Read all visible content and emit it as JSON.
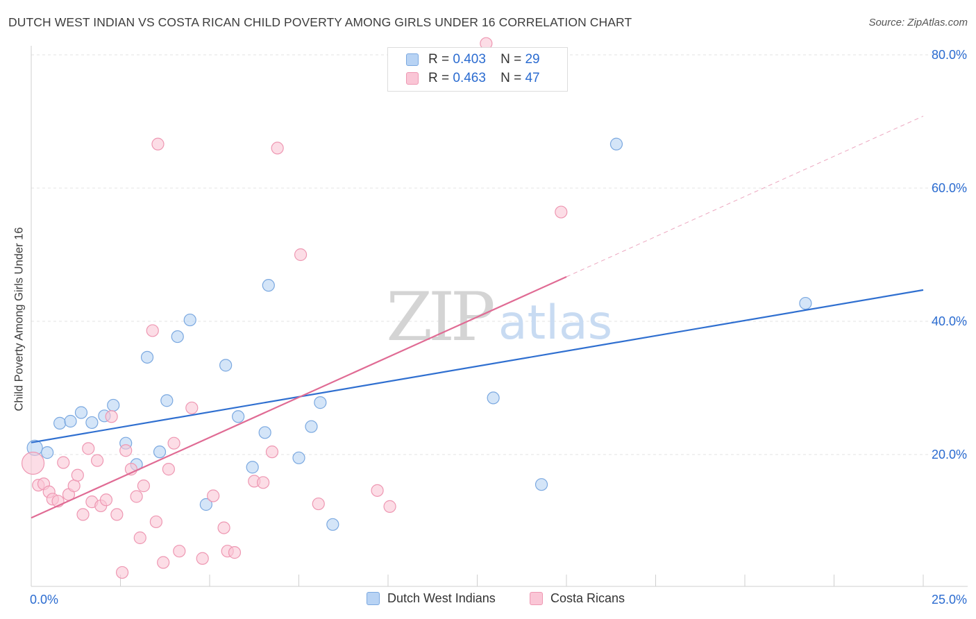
{
  "title": "DUTCH WEST INDIAN VS COSTA RICAN CHILD POVERTY AMONG GIRLS UNDER 16 CORRELATION CHART",
  "source": "Source: ZipAtlas.com",
  "watermark": {
    "zip": "ZIP",
    "atlas": "atlas"
  },
  "legend": {
    "r_label": "R =",
    "n_label": "N =",
    "items": [
      {
        "name": "Dutch West Indians",
        "r": "0.403",
        "n": "29",
        "fill": "#b8d3f4",
        "stroke": "#7aa8e0"
      },
      {
        "name": "Costa Ricans",
        "r": "0.463",
        "n": "47",
        "fill": "#fac6d6",
        "stroke": "#ee97b2"
      }
    ]
  },
  "colors": {
    "blue_line": "#2f6fd0",
    "pink_line": "#e06b94",
    "grid": "#e3e3e3",
    "axis_label": "#2a6bd0"
  },
  "chart_data": {
    "type": "scatter",
    "xlabel": "",
    "ylabel": "Child Poverty Among Girls Under 16",
    "x_unit": "%",
    "xlim": [
      0,
      25
    ],
    "ylim": [
      0,
      82
    ],
    "x_tick_labels": [
      {
        "value": 0,
        "label": "0.0%"
      },
      {
        "value": 25,
        "label": "25.0%"
      }
    ],
    "y_tick_labels": [
      {
        "value": 20,
        "label": "20.0%"
      },
      {
        "value": 40,
        "label": "40.0%"
      },
      {
        "value": 60,
        "label": "60.0%"
      },
      {
        "value": 80,
        "label": "80.0%"
      }
    ],
    "series": [
      {
        "name": "Dutch West Indians",
        "color": "#b8d3f4",
        "stroke": "#7aa8e0",
        "trendline": {
          "x": [
            0,
            25
          ],
          "y": [
            21.8,
            44.7
          ],
          "dashed_from": null
        },
        "points": [
          [
            0.1,
            21.0
          ],
          [
            0.45,
            20.3
          ],
          [
            0.8,
            24.7
          ],
          [
            1.1,
            25.0
          ],
          [
            1.4,
            26.3
          ],
          [
            1.7,
            24.8
          ],
          [
            2.05,
            25.8
          ],
          [
            2.3,
            27.4
          ],
          [
            2.65,
            21.7
          ],
          [
            2.95,
            18.5
          ],
          [
            3.25,
            34.6
          ],
          [
            3.6,
            20.4
          ],
          [
            3.8,
            28.1
          ],
          [
            4.1,
            37.7
          ],
          [
            4.45,
            40.2
          ],
          [
            4.9,
            12.5
          ],
          [
            5.45,
            33.4
          ],
          [
            5.8,
            25.7
          ],
          [
            6.2,
            18.1
          ],
          [
            6.55,
            23.3
          ],
          [
            6.65,
            45.4
          ],
          [
            7.5,
            19.5
          ],
          [
            7.85,
            24.2
          ],
          [
            8.1,
            27.8
          ],
          [
            8.45,
            9.5
          ],
          [
            12.95,
            28.5
          ],
          [
            14.3,
            15.5
          ],
          [
            16.4,
            66.6
          ],
          [
            21.7,
            42.7
          ]
        ]
      },
      {
        "name": "Costa Ricans",
        "color": "#fac6d6",
        "stroke": "#ee97b2",
        "trendline": {
          "x": [
            0,
            25
          ],
          "y": [
            10.5,
            70.8
          ],
          "dashed_from": 15.0
        },
        "points": [
          [
            0.05,
            18.7
          ],
          [
            0.2,
            15.4
          ],
          [
            0.35,
            15.6
          ],
          [
            0.5,
            14.4
          ],
          [
            0.6,
            13.3
          ],
          [
            0.75,
            13.0
          ],
          [
            0.9,
            18.8
          ],
          [
            1.05,
            14.0
          ],
          [
            1.2,
            15.3
          ],
          [
            1.3,
            16.9
          ],
          [
            1.45,
            11.0
          ],
          [
            1.6,
            20.9
          ],
          [
            1.7,
            12.9
          ],
          [
            1.85,
            19.1
          ],
          [
            1.95,
            12.3
          ],
          [
            2.1,
            13.2
          ],
          [
            2.25,
            25.7
          ],
          [
            2.4,
            11.0
          ],
          [
            2.55,
            2.3
          ],
          [
            2.65,
            20.6
          ],
          [
            2.8,
            17.8
          ],
          [
            2.95,
            13.7
          ],
          [
            3.05,
            7.5
          ],
          [
            3.15,
            15.3
          ],
          [
            3.4,
            38.6
          ],
          [
            3.5,
            9.9
          ],
          [
            3.55,
            66.6
          ],
          [
            3.7,
            3.8
          ],
          [
            3.85,
            17.8
          ],
          [
            4.0,
            21.7
          ],
          [
            4.15,
            5.5
          ],
          [
            4.5,
            27.0
          ],
          [
            4.8,
            4.4
          ],
          [
            5.1,
            13.8
          ],
          [
            5.4,
            9.0
          ],
          [
            5.5,
            5.5
          ],
          [
            5.7,
            5.3
          ],
          [
            6.25,
            16.0
          ],
          [
            6.5,
            15.8
          ],
          [
            6.75,
            20.4
          ],
          [
            6.9,
            66.0
          ],
          [
            7.55,
            50.0
          ],
          [
            8.05,
            12.6
          ],
          [
            9.7,
            14.6
          ],
          [
            10.05,
            12.2
          ],
          [
            14.85,
            56.4
          ],
          [
            12.75,
            81.7
          ]
        ]
      }
    ],
    "grid": true,
    "legend_position": "top-center"
  }
}
